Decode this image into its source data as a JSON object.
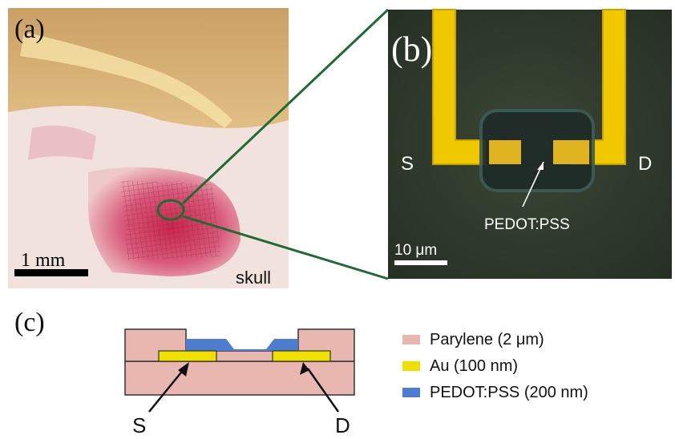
{
  "panels": {
    "a": {
      "label": "(a)",
      "scale_bar": "1 mm",
      "annotation": "skull"
    },
    "b": {
      "label": "(b)",
      "source_label": "S",
      "drain_label": "D",
      "channel_label": "PEDOT:PSS",
      "scale_bar": "10 μm"
    },
    "c": {
      "label": "(c)",
      "source_label": "S",
      "drain_label": "D"
    }
  },
  "legend": [
    {
      "label": "Parylene (2 μm)",
      "color": "#e8b8b0"
    },
    {
      "label": "Au (100 nm)",
      "color": "#f0e000"
    },
    {
      "label": "PEDOT:PSS (200 nm)",
      "color": "#4d7dd0"
    }
  ],
  "colors": {
    "connector": "#1e6b35",
    "gold": "#f0c800",
    "micrograph_bg": "#2f3a2c"
  }
}
